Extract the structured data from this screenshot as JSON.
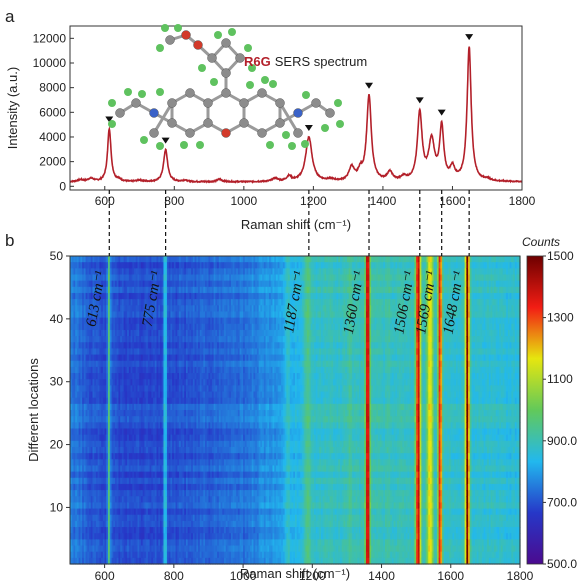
{
  "panel_a": {
    "label": "a"
  },
  "panel_b": {
    "label": "b"
  },
  "molecule_label": {
    "name": "R6G",
    "rest": "SERS spectrum"
  },
  "colorbar_title": "Counts",
  "colors": {
    "spectrum": "#b3202a",
    "molecule_label": "#b3202a",
    "atom_C": "#8c8c8c",
    "atom_H": "#5fc25f",
    "atom_O": "#d23a2a",
    "atom_N": "#3a62c8"
  },
  "chart_data": [
    {
      "type": "line",
      "title": "",
      "xlabel": "Raman shift (cm⁻¹)",
      "ylabel": "Intensity (a.u.)",
      "xlim": [
        500,
        1800
      ],
      "ylim": [
        -300,
        13000
      ],
      "xticks": [
        600,
        800,
        1000,
        1200,
        1400,
        1600,
        1800
      ],
      "yticks": [
        0,
        2000,
        4000,
        6000,
        8000,
        10000,
        12000
      ],
      "baseline": 350,
      "noise": 90,
      "peaks": [
        {
          "x": 530,
          "h": 150,
          "w": 12
        },
        {
          "x": 560,
          "h": 250,
          "w": 10
        },
        {
          "x": 613,
          "h": 4300,
          "w": 6
        },
        {
          "x": 640,
          "h": 150,
          "w": 8
        },
        {
          "x": 700,
          "h": 120,
          "w": 10
        },
        {
          "x": 775,
          "h": 2600,
          "w": 7
        },
        {
          "x": 830,
          "h": 120,
          "w": 8
        },
        {
          "x": 930,
          "h": 200,
          "w": 9
        },
        {
          "x": 1090,
          "h": 250,
          "w": 10
        },
        {
          "x": 1130,
          "h": 400,
          "w": 8
        },
        {
          "x": 1187,
          "h": 3600,
          "w": 11
        },
        {
          "x": 1250,
          "h": 150,
          "w": 10
        },
        {
          "x": 1310,
          "h": 1100,
          "w": 9
        },
        {
          "x": 1335,
          "h": 700,
          "w": 8
        },
        {
          "x": 1360,
          "h": 6900,
          "w": 8
        },
        {
          "x": 1420,
          "h": 700,
          "w": 9
        },
        {
          "x": 1460,
          "h": 300,
          "w": 9
        },
        {
          "x": 1506,
          "h": 5500,
          "w": 8
        },
        {
          "x": 1540,
          "h": 3200,
          "w": 10
        },
        {
          "x": 1569,
          "h": 4300,
          "w": 7
        },
        {
          "x": 1600,
          "h": 1000,
          "w": 8
        },
        {
          "x": 1648,
          "h": 10900,
          "w": 7
        },
        {
          "x": 1700,
          "h": 150,
          "w": 10
        }
      ],
      "marked_peaks": [
        613,
        775,
        1187,
        1360,
        1506,
        1569,
        1648
      ]
    },
    {
      "type": "heatmap",
      "xlabel": "Raman shift (cm⁻¹)",
      "ylabel": "Different locations",
      "xlim": [
        500,
        1800
      ],
      "ylim": [
        1,
        50
      ],
      "xticks": [
        600,
        800,
        1000,
        1200,
        1400,
        1600,
        1800
      ],
      "yticks": [
        10,
        20,
        30,
        40,
        50
      ],
      "peak_labels": [
        {
          "x": 613,
          "label": "613 cm⁻¹"
        },
        {
          "x": 775,
          "label": "775 cm⁻¹"
        },
        {
          "x": 1187,
          "label": "1187 cm⁻¹"
        },
        {
          "x": 1360,
          "label": "1360 cm⁻¹"
        },
        {
          "x": 1506,
          "label": "1506 cm⁻¹"
        },
        {
          "x": 1569,
          "label": "1569 cm⁻¹"
        },
        {
          "x": 1648,
          "label": "1648 cm⁻¹"
        }
      ],
      "bands": [
        {
          "x": 613,
          "v": 960,
          "w": 4
        },
        {
          "x": 775,
          "v": 900,
          "w": 5
        },
        {
          "x": 1130,
          "v": 880,
          "w": 6
        },
        {
          "x": 1187,
          "v": 960,
          "w": 9
        },
        {
          "x": 1310,
          "v": 940,
          "w": 8
        },
        {
          "x": 1360,
          "v": 1450,
          "w": 6
        },
        {
          "x": 1420,
          "v": 900,
          "w": 6
        },
        {
          "x": 1506,
          "v": 1420,
          "w": 7
        },
        {
          "x": 1540,
          "v": 1180,
          "w": 9
        },
        {
          "x": 1569,
          "v": 1360,
          "w": 6
        },
        {
          "x": 1648,
          "v": 1480,
          "w": 6
        }
      ],
      "background_profile": [
        {
          "x": 500,
          "v": 760
        },
        {
          "x": 560,
          "v": 710
        },
        {
          "x": 650,
          "v": 690
        },
        {
          "x": 750,
          "v": 690
        },
        {
          "x": 900,
          "v": 720
        },
        {
          "x": 1000,
          "v": 740
        },
        {
          "x": 1100,
          "v": 800
        },
        {
          "x": 1200,
          "v": 880
        },
        {
          "x": 1280,
          "v": 890
        },
        {
          "x": 1400,
          "v": 890
        },
        {
          "x": 1600,
          "v": 880
        },
        {
          "x": 1700,
          "v": 870
        },
        {
          "x": 1800,
          "v": 860
        }
      ],
      "colorbar": {
        "range": [
          500,
          1500
        ],
        "ticks": [
          "500.0",
          "700.0",
          "900.0",
          "1100",
          "1300",
          "1500"
        ],
        "stops": [
          "#4b0a8f",
          "#2638c8",
          "#22b8ee",
          "#62c95a",
          "#e6e60f",
          "#f21d14",
          "#6e0000"
        ]
      }
    }
  ]
}
